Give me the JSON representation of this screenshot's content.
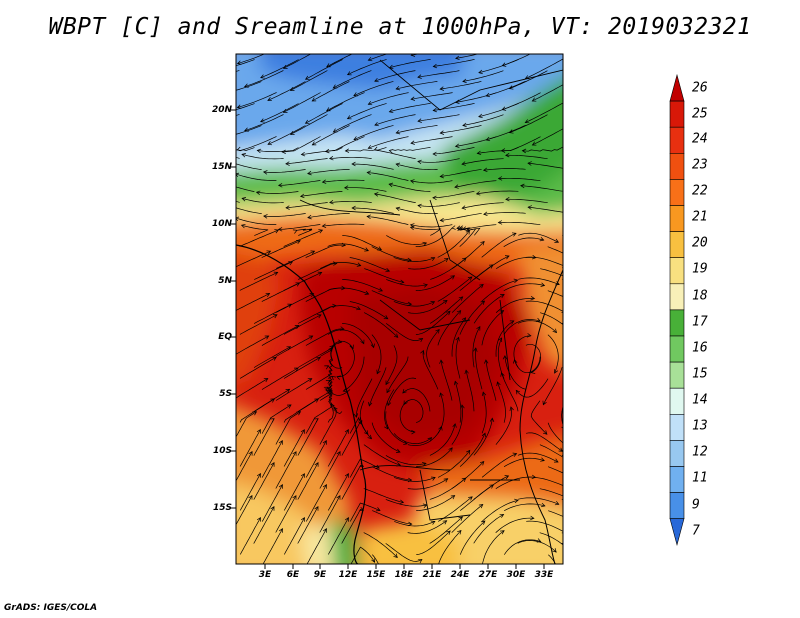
{
  "title": "WBPT [C] and Sreamline at 1000hPa, VT: 2019032321",
  "footer": "GrADS: IGES/COLA",
  "map": {
    "lat_labels": [
      "20N",
      "15N",
      "10N",
      "5N",
      "EQ",
      "5S",
      "10S",
      "15S"
    ],
    "lon_labels": [
      "3E",
      "6E",
      "9E",
      "12E",
      "15E",
      "18E",
      "21E",
      "24E",
      "27E",
      "30E",
      "33E"
    ]
  },
  "colorbar": {
    "labels": [
      "26",
      "25",
      "24",
      "23",
      "22",
      "21",
      "20",
      "19",
      "18",
      "17",
      "16",
      "15",
      "14",
      "13",
      "12",
      "11",
      "9",
      "7"
    ],
    "colors": [
      "#c00000",
      "#d81808",
      "#e83010",
      "#f05010",
      "#f87018",
      "#f89820",
      "#f8c040",
      "#f8e080",
      "#f8f0b8",
      "#48b038",
      "#70c860",
      "#a8e098",
      "#e0f8f0",
      "#c0e0f8",
      "#98c8f0",
      "#70b0f0",
      "#4890e8",
      "#2868d8"
    ]
  }
}
